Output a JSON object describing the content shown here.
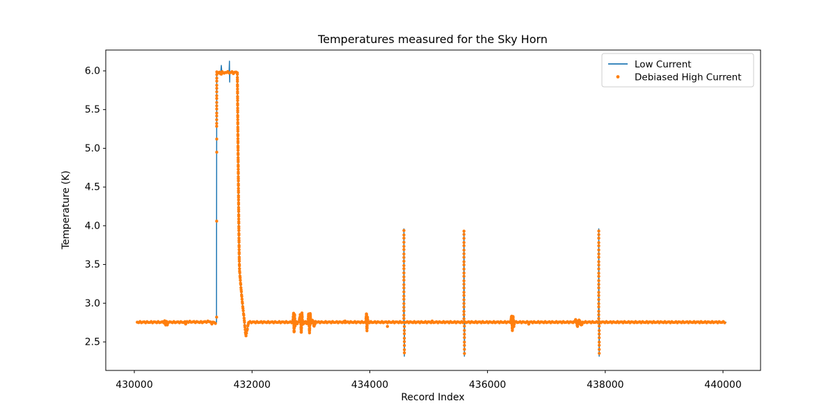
{
  "figure": {
    "background": "#ffffff",
    "axis_color": "#000000"
  },
  "chart_data": {
    "type": "line+scatter",
    "title": "Temperatures measured for the Sky Horn",
    "xlabel": "Record Index",
    "ylabel": "Temperature (K)",
    "xlim": [
      429515,
      440638
    ],
    "ylim": [
      2.132,
      6.269
    ],
    "x_ticks": [
      430000,
      432000,
      434000,
      436000,
      438000,
      440000
    ],
    "x_tick_labels": [
      "430000",
      "432000",
      "434000",
      "436000",
      "438000",
      "440000"
    ],
    "y_ticks": [
      2.5,
      3.0,
      3.5,
      4.0,
      4.5,
      5.0,
      5.5,
      6.0
    ],
    "y_tick_labels": [
      "2.5",
      "3.0",
      "3.5",
      "4.0",
      "4.5",
      "5.0",
      "5.5",
      "6.0"
    ],
    "grid": false,
    "legend_loc": "upper right",
    "series": [
      {
        "name": "Low Current",
        "type": "line",
        "color": "#1f77b4",
        "line_width": 1.5,
        "points": [
          [
            430050,
            2.755
          ],
          [
            431396,
            2.755
          ],
          [
            431400,
            5.985
          ],
          [
            431470,
            5.99
          ],
          [
            431478,
            6.07
          ],
          [
            431486,
            5.985
          ],
          [
            431610,
            5.985
          ],
          [
            431616,
            6.125
          ],
          [
            431620,
            5.855
          ],
          [
            431624,
            5.985
          ],
          [
            431748,
            5.99
          ],
          [
            431753,
            5.6
          ],
          [
            431758,
            5.15
          ],
          [
            431764,
            4.65
          ],
          [
            431770,
            4.15
          ],
          [
            431777,
            3.75
          ],
          [
            431784,
            3.45
          ],
          [
            431800,
            3.28
          ],
          [
            431824,
            3.07
          ],
          [
            431848,
            2.9
          ],
          [
            431868,
            2.76
          ],
          [
            431886,
            2.62
          ],
          [
            431896,
            2.575
          ],
          [
            431910,
            2.63
          ],
          [
            431938,
            2.75
          ],
          [
            434576,
            2.755
          ],
          [
            434580,
            3.96
          ],
          [
            434587,
            2.315
          ],
          [
            434591,
            2.755
          ],
          [
            435596,
            2.755
          ],
          [
            435600,
            3.94
          ],
          [
            435607,
            2.315
          ],
          [
            435611,
            2.755
          ],
          [
            437886,
            2.755
          ],
          [
            437890,
            3.96
          ],
          [
            437897,
            2.315
          ],
          [
            437901,
            2.755
          ],
          [
            440052,
            2.755
          ]
        ]
      },
      {
        "name": "Debiased High Current",
        "type": "scatter",
        "color": "#ff7f0e",
        "marker_radius": 2.2,
        "dense_segments": [
          {
            "pts": [
              [
                430050,
                2.755
              ],
              [
                430505,
                2.755
              ],
              [
                430518,
                2.77
              ],
              [
                430530,
                2.715
              ],
              [
                430546,
                2.775
              ],
              [
                430560,
                2.72
              ],
              [
                430576,
                2.755
              ],
              [
                430860,
                2.755
              ],
              [
                430875,
                2.735
              ],
              [
                430890,
                2.76
              ],
              [
                431150,
                2.755
              ],
              [
                431290,
                2.765
              ],
              [
                431310,
                2.735
              ],
              [
                431340,
                2.755
              ],
              [
                431396,
                2.74
              ]
            ],
            "spacing": 2.0,
            "jitter": 0.9
          },
          {
            "pts": [
              [
                431399,
                5.28
              ],
              [
                431401,
                5.97
              ]
            ],
            "spacing": 5,
            "jitter": 0.5
          },
          {
            "pts": [
              [
                431401,
                5.98
              ],
              [
                431440,
                5.985
              ],
              [
                431470,
                5.955
              ],
              [
                431500,
                5.99
              ],
              [
                431530,
                5.965
              ],
              [
                431570,
                5.99
              ],
              [
                431610,
                5.975
              ],
              [
                431650,
                5.985
              ],
              [
                431690,
                5.97
              ],
              [
                431720,
                5.985
              ],
              [
                431748,
                5.975
              ]
            ],
            "spacing": 2.2,
            "jitter": 1.0
          },
          {
            "pts": [
              [
                431750,
                5.98
              ],
              [
                431753,
                5.75
              ],
              [
                431757,
                5.4
              ],
              [
                431761,
                5.05
              ],
              [
                431766,
                4.7
              ],
              [
                431771,
                4.3
              ],
              [
                431777,
                3.9
              ],
              [
                431783,
                3.55
              ],
              [
                431788,
                3.42
              ],
              [
                431806,
                3.25
              ],
              [
                431826,
                3.08
              ],
              [
                431846,
                2.93
              ],
              [
                431866,
                2.8
              ],
              [
                431884,
                2.65
              ],
              [
                431895,
                2.575
              ],
              [
                431908,
                2.62
              ],
              [
                431925,
                2.69
              ],
              [
                431942,
                2.755
              ]
            ],
            "spacing": 3.4,
            "jitter": 0.7
          },
          {
            "pts": [
              [
                431942,
                2.755
              ],
              [
                432692,
                2.755
              ]
            ],
            "spacing": 2.0,
            "jitter": 0.9
          },
          {
            "pts": [
              [
                432692,
                2.755
              ],
              [
                432706,
                2.87
              ],
              [
                432714,
                2.62
              ],
              [
                432722,
                2.86
              ],
              [
                432730,
                2.7
              ],
              [
                432744,
                2.76
              ],
              [
                432760,
                2.73
              ],
              [
                432800,
                2.765
              ],
              [
                432822,
                2.86
              ],
              [
                432836,
                2.615
              ],
              [
                432848,
                2.87
              ],
              [
                432860,
                2.72
              ],
              [
                432900,
                2.765
              ],
              [
                432948,
                2.73
              ],
              [
                432962,
                2.87
              ],
              [
                432976,
                2.62
              ],
              [
                432988,
                2.87
              ],
              [
                433000,
                2.73
              ],
              [
                433028,
                2.785
              ],
              [
                433054,
                2.7
              ],
              [
                433080,
                2.765
              ],
              [
                433108,
                2.755
              ]
            ],
            "spacing": 2.2,
            "jitter": 0.8
          },
          {
            "pts": [
              [
                433108,
                2.755
              ],
              [
                433932,
                2.755
              ]
            ],
            "spacing": 2.0,
            "jitter": 0.9
          },
          {
            "pts": [
              [
                433932,
                2.755
              ],
              [
                433944,
                2.87
              ],
              [
                433952,
                2.65
              ],
              [
                433960,
                2.82
              ],
              [
                433970,
                2.755
              ]
            ],
            "spacing": 2.2,
            "jitter": 0.8
          },
          {
            "pts": [
              [
                433970,
                2.755
              ],
              [
                434574,
                2.755
              ]
            ],
            "spacing": 2.0,
            "jitter": 0.9
          },
          {
            "pts": [
              [
                434579,
                2.8
              ],
              [
                434580,
                3.96
              ]
            ],
            "spacing": 5.5,
            "jitter": 0.5
          },
          {
            "pts": [
              [
                434587,
                2.7
              ],
              [
                434588,
                2.315
              ]
            ],
            "spacing": 5.5,
            "jitter": 0.5
          },
          {
            "pts": [
              [
                434591,
                2.755
              ],
              [
                435594,
                2.755
              ]
            ],
            "spacing": 2.0,
            "jitter": 0.9
          },
          {
            "pts": [
              [
                435599,
                2.8
              ],
              [
                435600,
                3.94
              ]
            ],
            "spacing": 5.5,
            "jitter": 0.5
          },
          {
            "pts": [
              [
                435607,
                2.7
              ],
              [
                435608,
                2.315
              ]
            ],
            "spacing": 5.5,
            "jitter": 0.5
          },
          {
            "pts": [
              [
                435611,
                2.755
              ],
              [
                436392,
                2.755
              ]
            ],
            "spacing": 2.0,
            "jitter": 0.9
          },
          {
            "pts": [
              [
                436392,
                2.755
              ],
              [
                436410,
                2.84
              ],
              [
                436422,
                2.65
              ],
              [
                436434,
                2.83
              ],
              [
                436446,
                2.7
              ],
              [
                436460,
                2.755
              ]
            ],
            "spacing": 2.2,
            "jitter": 0.8
          },
          {
            "pts": [
              [
                436460,
                2.755
              ],
              [
                437468,
                2.755
              ]
            ],
            "spacing": 2.0,
            "jitter": 0.9
          },
          {
            "pts": [
              [
                437468,
                2.755
              ],
              [
                437498,
                2.79
              ],
              [
                437528,
                2.7
              ],
              [
                437558,
                2.79
              ],
              [
                437590,
                2.71
              ],
              [
                437618,
                2.755
              ]
            ],
            "spacing": 2.2,
            "jitter": 0.8
          },
          {
            "pts": [
              [
                437618,
                2.755
              ],
              [
                437884,
                2.755
              ]
            ],
            "spacing": 2.0,
            "jitter": 0.9
          },
          {
            "pts": [
              [
                437889,
                2.8
              ],
              [
                437890,
                3.96
              ]
            ],
            "spacing": 5.5,
            "jitter": 0.5
          },
          {
            "pts": [
              [
                437897,
                2.7
              ],
              [
                437898,
                2.315
              ]
            ],
            "spacing": 5.5,
            "jitter": 0.5
          },
          {
            "pts": [
              [
                437901,
                2.755
              ],
              [
                440052,
                2.755
              ]
            ],
            "spacing": 2.0,
            "jitter": 0.9
          }
        ],
        "extra_dots": [
          [
            431398,
            2.82
          ],
          [
            431399,
            4.06
          ],
          [
            431400,
            4.95
          ],
          [
            431400,
            5.12
          ],
          [
            434300,
            2.7
          ],
          [
            435060,
            2.77
          ],
          [
            433580,
            2.77
          ],
          [
            436700,
            2.73
          ]
        ]
      }
    ]
  }
}
